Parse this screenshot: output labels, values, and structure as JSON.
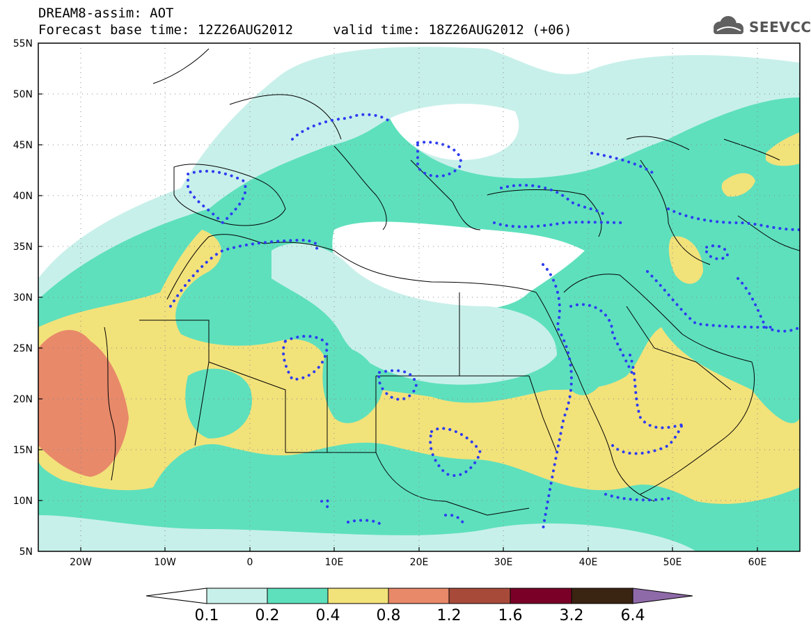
{
  "header": {
    "title_line1": "DREAM8-assim: AOT",
    "title_line2": "Forecast base time: 12Z26AUG2012     valid time: 18Z26AUG2012 (+06)"
  },
  "logo": {
    "text": "SEEVCCC",
    "icon": "cloud-icon"
  },
  "map": {
    "lat_labels": [
      "55N",
      "50N",
      "45N",
      "40N",
      "35N",
      "30N",
      "25N",
      "20N",
      "15N",
      "10N",
      "5N"
    ],
    "lon_labels": [
      "20W",
      "10W",
      "0",
      "10E",
      "20E",
      "30E",
      "40E",
      "50E",
      "60E"
    ],
    "lat_range": [
      5,
      55
    ],
    "lon_range": [
      -25,
      65
    ],
    "grid": true
  },
  "colorbar": {
    "levels": [
      "0.1",
      "0.2",
      "0.4",
      "0.8",
      "1.2",
      "1.6",
      "3.2",
      "6.4"
    ],
    "colors": [
      "#ffffff",
      "#c8f0ea",
      "#5ee0bd",
      "#f2e27a",
      "#e8896a",
      "#a84a3a",
      "#7a0027",
      "#3a2412",
      "#8f6aa8"
    ]
  }
}
